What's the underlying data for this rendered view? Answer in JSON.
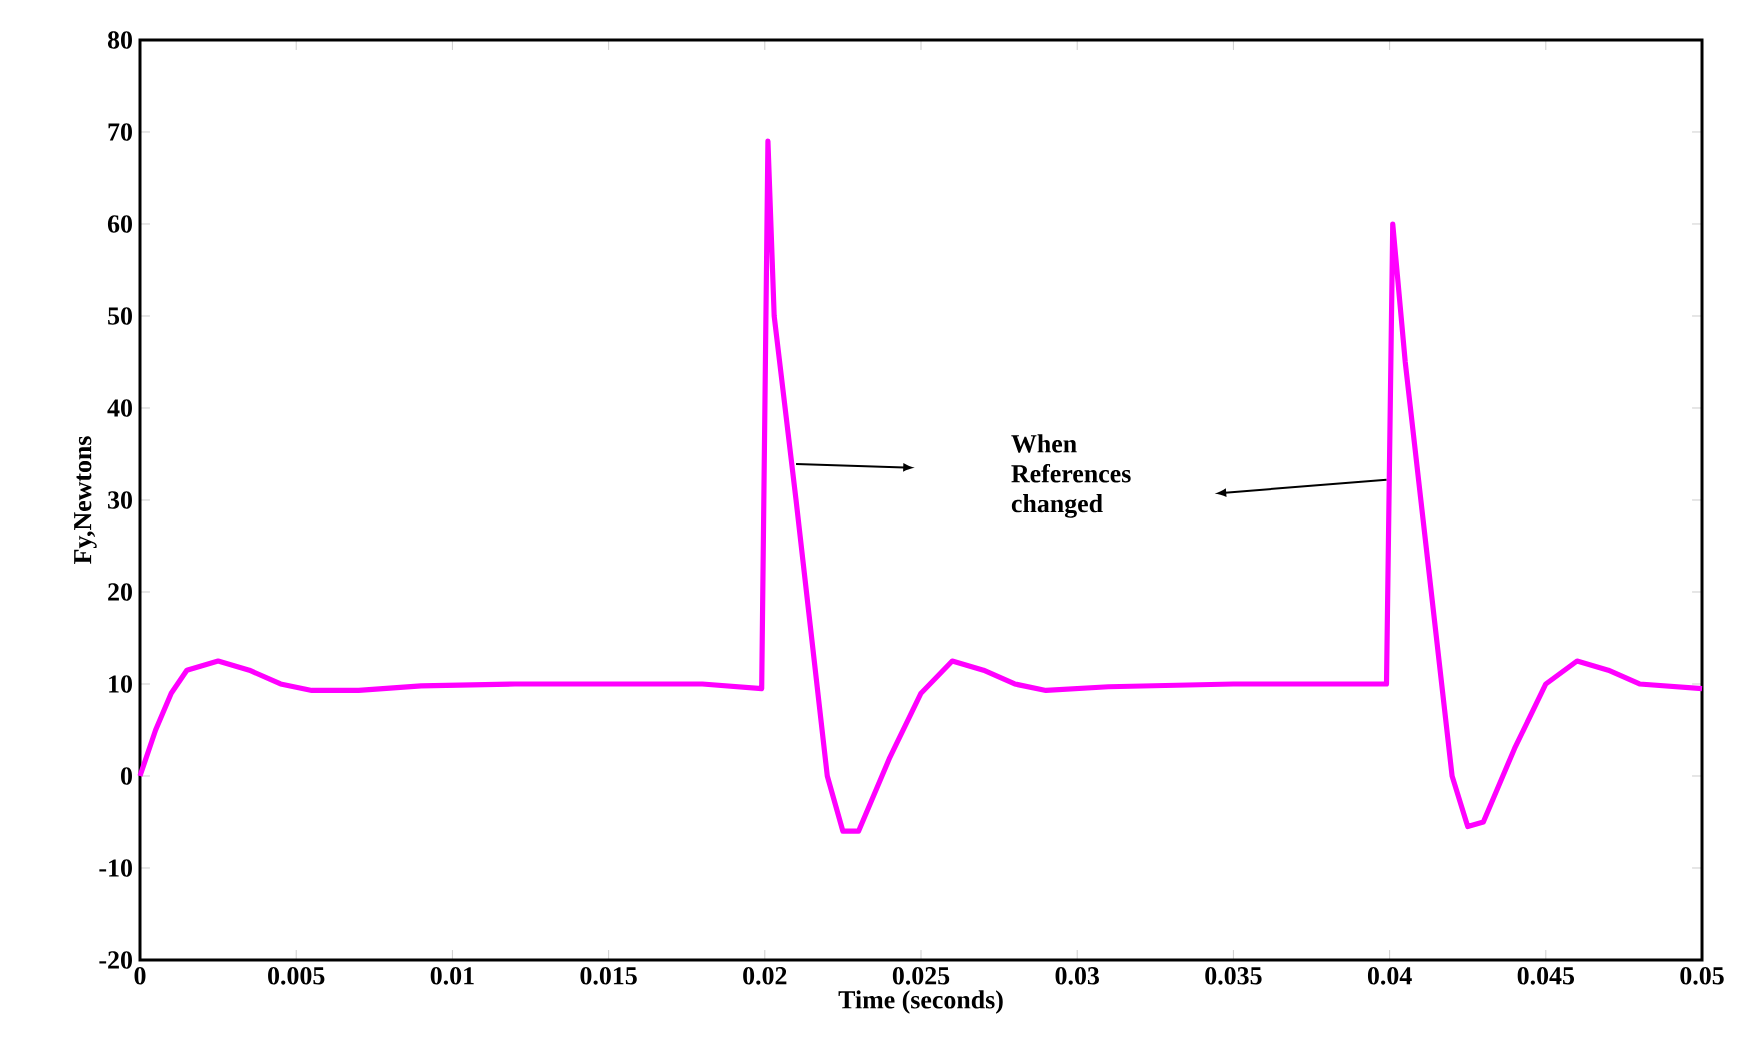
{
  "chart_data": {
    "type": "line",
    "xlabel": "Time (seconds)",
    "ylabel": "Fy,Newtons",
    "xlim": [
      0,
      0.05
    ],
    "ylim": [
      -20,
      80
    ],
    "xticks": [
      0,
      0.005,
      0.01,
      0.015,
      0.02,
      0.025,
      0.03,
      0.035,
      0.04,
      0.045,
      0.05
    ],
    "yticks": [
      -20,
      -10,
      0,
      10,
      20,
      30,
      40,
      50,
      60,
      70,
      80
    ],
    "grid": false,
    "marker": "none",
    "line_style": "solid",
    "annotations": [
      "When References changed"
    ],
    "series": [
      {
        "color": "#ff00ff",
        "x": [
          0,
          0.0005,
          0.001,
          0.0015,
          0.0025,
          0.0035,
          0.0045,
          0.0055,
          0.007,
          0.009,
          0.012,
          0.015,
          0.018,
          0.0199,
          0.0201,
          0.0203,
          0.021,
          0.022,
          0.0225,
          0.023,
          0.024,
          0.025,
          0.026,
          0.027,
          0.028,
          0.029,
          0.031,
          0.035,
          0.0399,
          0.0401,
          0.0405,
          0.041,
          0.042,
          0.0425,
          0.043,
          0.044,
          0.045,
          0.046,
          0.047,
          0.048,
          0.05
        ],
        "values": [
          0,
          5,
          9,
          11.5,
          12.5,
          11.5,
          10,
          9.3,
          9.3,
          9.8,
          10,
          10,
          10,
          9.5,
          69,
          50,
          30,
          0,
          -6,
          -6,
          2,
          9,
          12.5,
          11.5,
          10,
          9.3,
          9.7,
          10,
          10,
          60,
          45,
          30,
          0,
          -5.5,
          -5,
          3,
          10,
          12.5,
          11.5,
          10,
          9.5
        ]
      }
    ]
  }
}
